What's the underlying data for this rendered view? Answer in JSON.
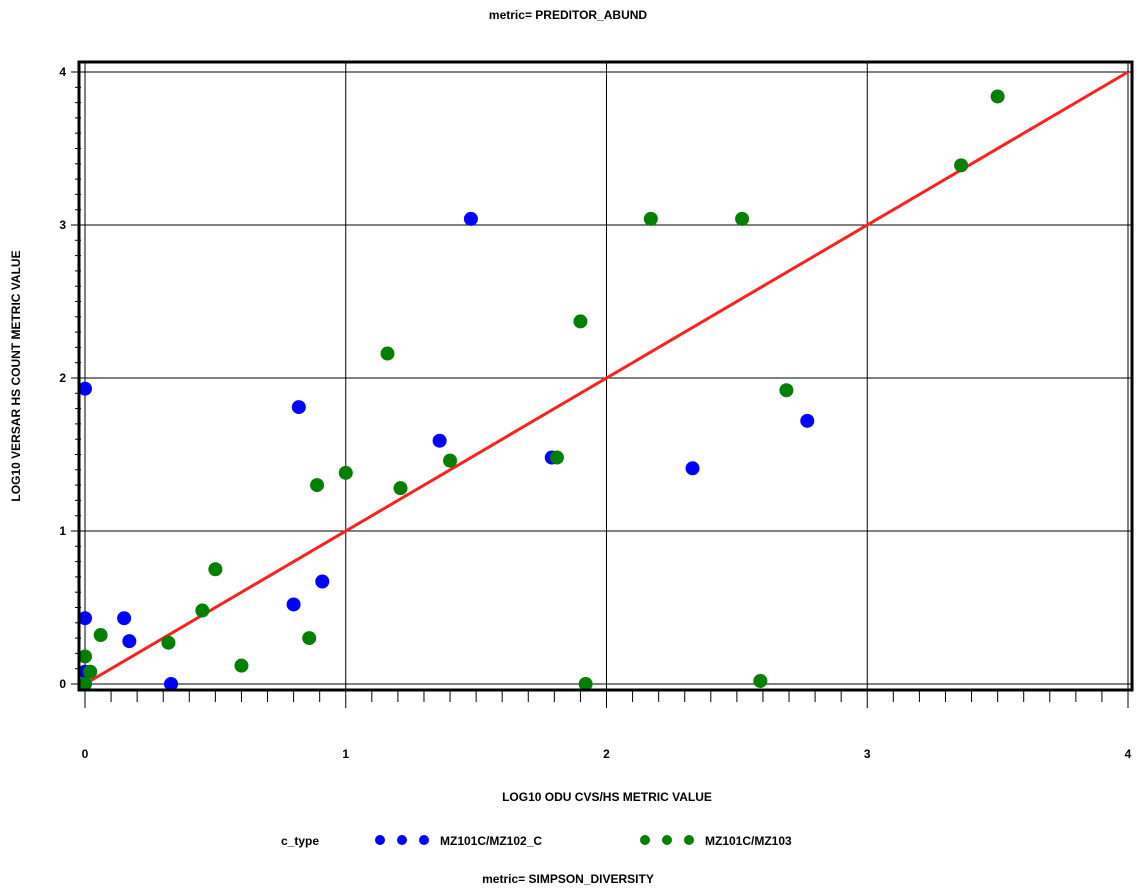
{
  "chart_data": {
    "type": "scatter",
    "title": "metric= PREDITOR_ABUND",
    "footer": "metric= SIMPSON_DIVERSITY",
    "xlabel": "LOG10 ODU CVS/HS METRIC VALUE",
    "ylabel": "LOG10 VERSAR HS COUNT METRIC VALUE",
    "xlim": [
      0,
      4
    ],
    "ylim": [
      -0.08,
      4.08
    ],
    "x_ticks": [
      "0",
      "1",
      "2",
      "3",
      "4"
    ],
    "y_ticks": [
      "0",
      "1",
      "2",
      "3",
      "4"
    ],
    "grid": true,
    "legend": {
      "title": "c_type",
      "placement": "bottom"
    },
    "reference_line": {
      "from": [
        0,
        0
      ],
      "to": [
        4,
        4
      ],
      "color": "#ff2020"
    },
    "series": [
      {
        "name": "MZ101C/MZ102_C",
        "color": "#0000ff",
        "points": [
          [
            0.0,
            1.93
          ],
          [
            0.0,
            0.43
          ],
          [
            0.0,
            0.08
          ],
          [
            0.15,
            0.43
          ],
          [
            0.17,
            0.28
          ],
          [
            0.33,
            0.0
          ],
          [
            0.8,
            0.52
          ],
          [
            0.82,
            1.81
          ],
          [
            0.91,
            0.67
          ],
          [
            1.36,
            1.59
          ],
          [
            1.48,
            3.04
          ],
          [
            1.79,
            1.48
          ],
          [
            2.33,
            1.41
          ],
          [
            2.77,
            1.72
          ]
        ]
      },
      {
        "name": "MZ101C/MZ103",
        "color": "#008000",
        "points": [
          [
            0.0,
            0.0
          ],
          [
            0.0,
            0.18
          ],
          [
            0.02,
            0.08
          ],
          [
            0.06,
            0.32
          ],
          [
            0.32,
            0.27
          ],
          [
            0.45,
            0.48
          ],
          [
            0.5,
            0.75
          ],
          [
            0.6,
            0.12
          ],
          [
            0.86,
            0.3
          ],
          [
            0.89,
            1.3
          ],
          [
            1.0,
            1.38
          ],
          [
            1.16,
            2.16
          ],
          [
            1.21,
            1.28
          ],
          [
            1.4,
            1.46
          ],
          [
            1.81,
            1.48
          ],
          [
            1.9,
            2.37
          ],
          [
            1.92,
            0.0
          ],
          [
            2.17,
            3.04
          ],
          [
            2.52,
            3.04
          ],
          [
            2.59,
            0.02
          ],
          [
            2.69,
            1.92
          ],
          [
            3.36,
            3.39
          ],
          [
            3.5,
            3.84
          ]
        ]
      }
    ]
  }
}
